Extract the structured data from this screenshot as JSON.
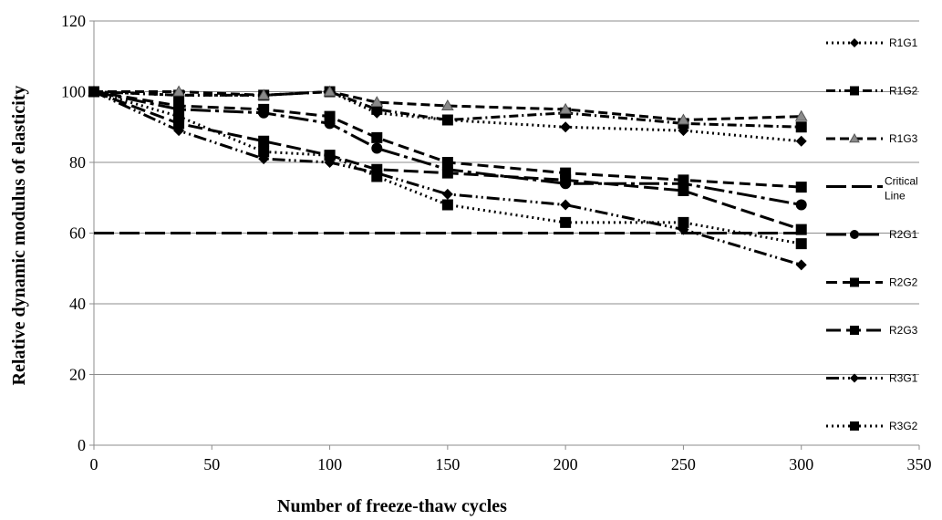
{
  "chart_data": {
    "type": "line",
    "title": "",
    "xlabel": "Number of freeze-thaw cycles",
    "ylabel": "Relative dynamic modulus of elasticity",
    "xlim": [
      0,
      350
    ],
    "ylim": [
      0,
      120
    ],
    "x_ticks": [
      0,
      50,
      100,
      150,
      200,
      250,
      300,
      350
    ],
    "y_ticks": [
      0,
      20,
      40,
      60,
      80,
      100,
      120
    ],
    "grid": "horizontal",
    "legend_position": "right",
    "series": [
      {
        "name": "R1G1",
        "dash": "2,4",
        "marker": "diamond",
        "x": [
          0,
          36,
          72,
          100,
          120,
          150,
          200,
          250,
          300
        ],
        "y": [
          100,
          99,
          99,
          100,
          94,
          92,
          90,
          89,
          86
        ]
      },
      {
        "name": "R1G2",
        "dash": "10,4,2,4",
        "marker": "square",
        "x": [
          0,
          36,
          72,
          100,
          120,
          150,
          200,
          250,
          300
        ],
        "y": [
          100,
          99,
          99,
          100,
          95,
          92,
          94,
          91,
          90
        ]
      },
      {
        "name": "R1G3",
        "dash": "10,5",
        "marker": "triangle",
        "x": [
          0,
          36,
          72,
          100,
          120,
          150,
          200,
          250,
          300
        ],
        "y": [
          100,
          100,
          99,
          100,
          97,
          96,
          95,
          92,
          93
        ]
      },
      {
        "name": "Critical Line",
        "name_lines": [
          "Critical",
          "Line"
        ],
        "dash": "22,6",
        "marker": "none",
        "x": [
          0,
          300
        ],
        "y": [
          60,
          60
        ]
      },
      {
        "name": "R2G1",
        "dash": "22,5,4,5",
        "marker": "circle",
        "x": [
          0,
          36,
          72,
          100,
          120,
          150,
          200,
          250,
          300
        ],
        "y": [
          100,
          95,
          94,
          91,
          84,
          78,
          74,
          74,
          68
        ]
      },
      {
        "name": "R2G2",
        "dash": "12,6",
        "marker": "square",
        "x": [
          0,
          36,
          72,
          100,
          120,
          150,
          200,
          250,
          300
        ],
        "y": [
          100,
          96,
          95,
          93,
          87,
          80,
          77,
          75,
          73
        ]
      },
      {
        "name": "R2G3",
        "dash": "16,6",
        "marker": "square",
        "x": [
          0,
          36,
          72,
          100,
          120,
          150,
          200,
          250,
          300
        ],
        "y": [
          100,
          91,
          86,
          82,
          78,
          77,
          75,
          72,
          61
        ]
      },
      {
        "name": "R3G1",
        "dash": "14,4,2,4,2,4",
        "marker": "diamond",
        "x": [
          0,
          36,
          72,
          100,
          120,
          150,
          200,
          250,
          300
        ],
        "y": [
          100,
          89,
          81,
          80,
          77,
          71,
          68,
          61,
          51
        ]
      },
      {
        "name": "R3G2",
        "dash": "2,4",
        "marker": "square",
        "x": [
          0,
          36,
          72,
          100,
          120,
          150,
          200,
          250,
          300
        ],
        "y": [
          100,
          93,
          83,
          82,
          76,
          68,
          63,
          63,
          57
        ]
      }
    ]
  }
}
